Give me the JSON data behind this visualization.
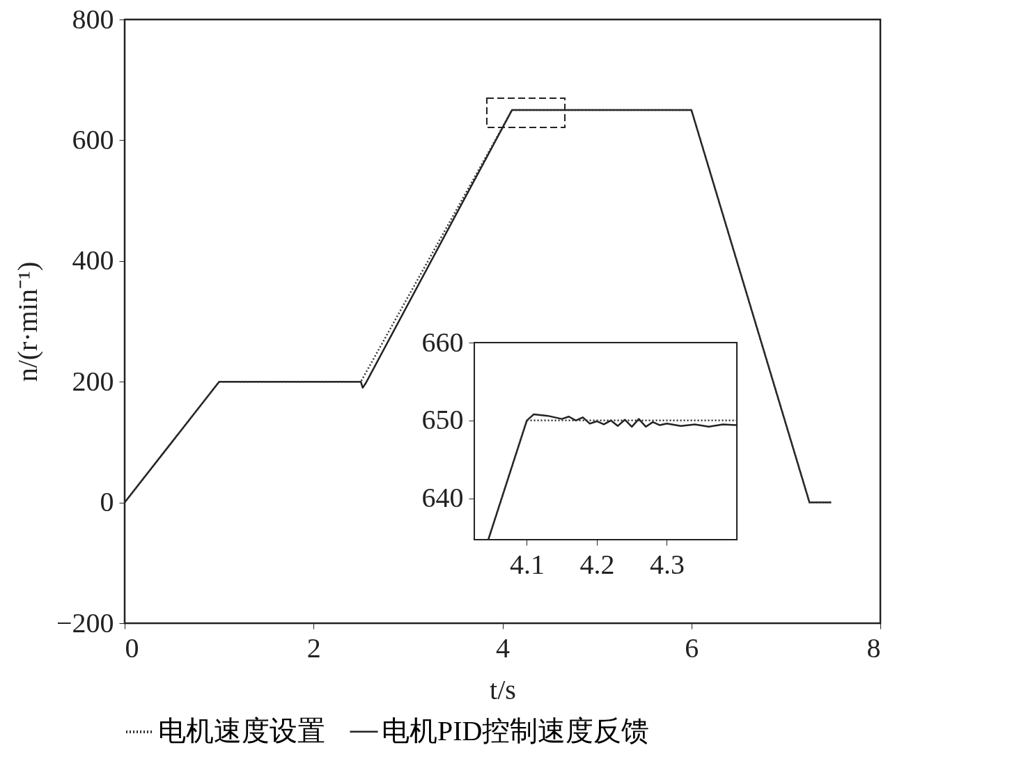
{
  "chart_data": [
    {
      "type": "line",
      "xlabel": "t/s",
      "ylabel": "n/(r·min⁻¹)",
      "xlim": [
        0,
        8
      ],
      "ylim": [
        -200,
        800
      ],
      "xticks": [
        0,
        2,
        4,
        6,
        8
      ],
      "yticks": [
        {
          "value": -200,
          "label": "−200"
        },
        0,
        200,
        400,
        600,
        800
      ],
      "grid": false,
      "legend": "bottom",
      "series": [
        {
          "name": "电机速度设置",
          "color": "#333333",
          "line_style": "dotted",
          "x": [
            0,
            1,
            2.5,
            4.1,
            6,
            7.25,
            7.48
          ],
          "values": [
            0,
            200,
            200,
            650,
            650,
            0,
            0
          ]
        },
        {
          "name": "电机PID控制速度反馈",
          "color": "#222222",
          "line_style": "solid",
          "x": [
            0,
            1,
            2.5,
            2.52,
            2.55,
            4.1,
            6,
            7.25,
            7.48
          ],
          "values": [
            0,
            200,
            200,
            190,
            197,
            650,
            650,
            0,
            0
          ]
        }
      ]
    },
    {
      "type": "line",
      "xlim": [
        4.025,
        4.4
      ],
      "ylim": [
        634.7,
        660
      ],
      "xticks": [
        4.1,
        4.2,
        4.3
      ],
      "yticks": [
        640,
        650,
        660
      ],
      "grid": false,
      "series": [
        {
          "name": "电机速度设置",
          "color": "#333333",
          "line_style": "dotted",
          "x": [
            4.045,
            4.1,
            4.4
          ],
          "values": [
            634.7,
            650,
            650
          ]
        },
        {
          "name": "电机PID控制速度反馈",
          "color": "#222222",
          "line_style": "solid",
          "x": [
            4.045,
            4.1,
            4.11,
            4.13,
            4.15,
            4.16,
            4.17,
            4.18,
            4.19,
            4.2,
            4.21,
            4.22,
            4.23,
            4.24,
            4.25,
            4.26,
            4.27,
            4.28,
            4.29,
            4.3,
            4.32,
            4.34,
            4.36,
            4.38,
            4.4
          ],
          "values": [
            634.7,
            650,
            650.8,
            650.6,
            650.2,
            650.5,
            650.0,
            650.4,
            649.6,
            649.9,
            649.5,
            650.0,
            649.3,
            650.1,
            649.2,
            650.2,
            649.2,
            649.8,
            649.4,
            649.6,
            649.3,
            649.5,
            649.2,
            649.5,
            649.4
          ]
        }
      ]
    }
  ]
}
